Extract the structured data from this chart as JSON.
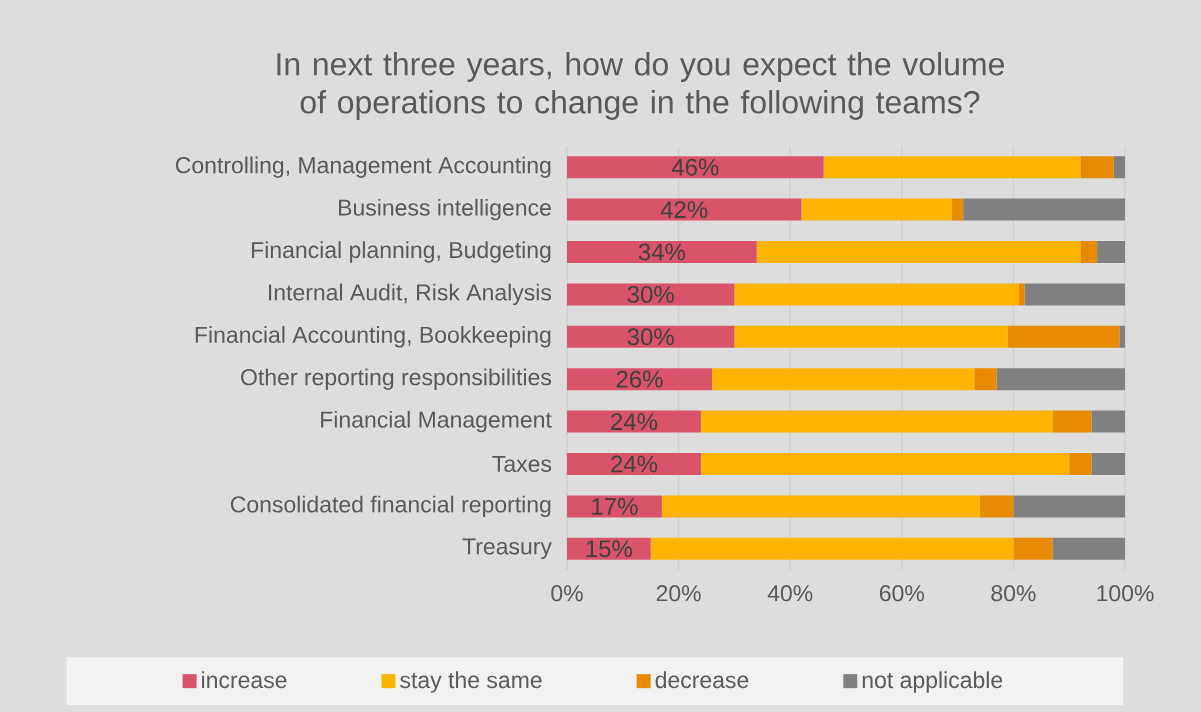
{
  "chart_data": {
    "type": "bar",
    "orientation": "horizontal",
    "stacked": true,
    "title": "In next three years, how do you expect the volume of operations to change in the following teams?",
    "categories": [
      "Controlling, Management Accounting",
      "Business intelligence",
      "Financial planning, Budgeting",
      "Internal Audit, Risk Analysis",
      "Financial Accounting, Bookkeeping",
      "Other reporting responsibilities",
      "Financial Management",
      "Taxes",
      "Consolidated financial reporting",
      "Treasury"
    ],
    "series": [
      {
        "name": "increase",
        "color": "#d9546b",
        "values": [
          46,
          42,
          34,
          30,
          30,
          26,
          24,
          24,
          17,
          15
        ],
        "value_labels": [
          "46%",
          "42%",
          "34%",
          "30%",
          "30%",
          "26%",
          "24%",
          "24%",
          "17%",
          "15%"
        ]
      },
      {
        "name": "stay the same",
        "color": "#ffb400",
        "values": [
          46,
          27,
          58,
          51,
          49,
          47,
          63,
          66,
          57,
          65
        ]
      },
      {
        "name": "decrease",
        "color": "#e88a00",
        "values": [
          6,
          2,
          3,
          1,
          20,
          4,
          7,
          4,
          6,
          7
        ]
      },
      {
        "name": "not applicable",
        "color": "#808080",
        "values": [
          2,
          29,
          5,
          18,
          1,
          23,
          6,
          6,
          20,
          13
        ]
      }
    ],
    "xlim": [
      0,
      100
    ],
    "xticks": [
      {
        "value": 0,
        "label": "0%"
      },
      {
        "value": 20,
        "label": "20%"
      },
      {
        "value": 40,
        "label": "40%"
      },
      {
        "value": 60,
        "label": "60%"
      },
      {
        "value": 80,
        "label": "80%"
      },
      {
        "value": 100,
        "label": "100%"
      }
    ],
    "grid": "x",
    "legend": "bottom"
  }
}
